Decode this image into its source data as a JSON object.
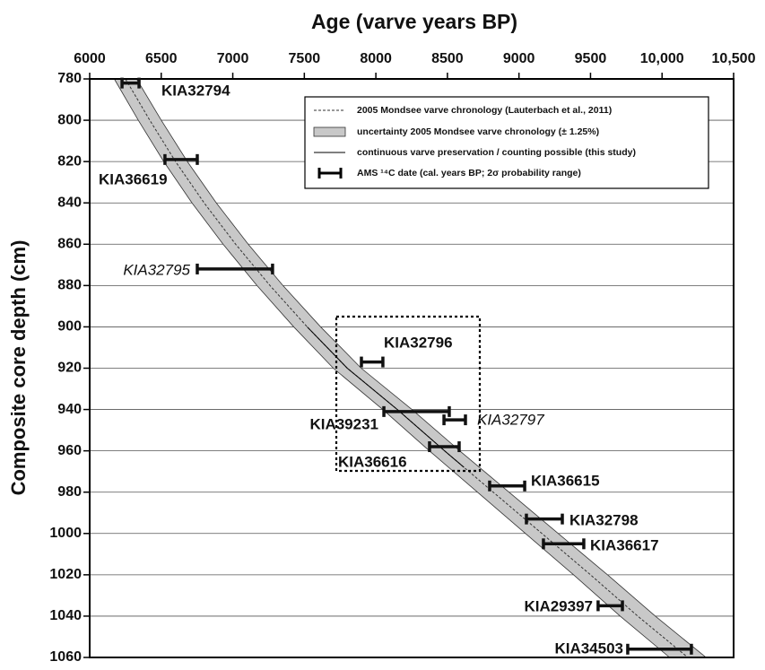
{
  "chart_data": {
    "type": "age-depth",
    "title": "Age (varve years BP)",
    "y_label": "Composite core depth (cm)",
    "xlim": [
      6000,
      10500
    ],
    "xticks": [
      6000,
      6500,
      7000,
      7500,
      8000,
      8500,
      9000,
      9500,
      {
        "value": 10000,
        "label": "10,000"
      },
      {
        "value": 10500,
        "label": "10,500"
      }
    ],
    "ylim": [
      780,
      1060
    ],
    "yticks": [
      780,
      800,
      820,
      840,
      860,
      880,
      900,
      920,
      940,
      960,
      980,
      1000,
      1020,
      1040,
      1060
    ],
    "grid": true,
    "chronology": {
      "name": "2005 Mondsee varve chronology (Lauterbach et al., 2011)",
      "color": "#333333",
      "depth": [
        780,
        800,
        820,
        840,
        860,
        880,
        900,
        920,
        940,
        960,
        980,
        1000,
        1020,
        1040,
        1060
      ],
      "age": [
        6250,
        6420,
        6600,
        6800,
        7020,
        7260,
        7520,
        7800,
        8150,
        8480,
        8820,
        9160,
        9500,
        9830,
        10180
      ]
    },
    "uncertainty": {
      "name": "uncertainty 2005 Mondsee varve chronology (± 1.25%)",
      "percent": 1.25,
      "color": "#c8c8c8"
    },
    "continuous": {
      "name": "continuous varve preservation / counting possible (this study)",
      "color": "#000000",
      "depth": [
        900,
        920,
        940,
        960,
        968
      ],
      "age": [
        7520,
        7800,
        8150,
        8480,
        8616
      ]
    },
    "dates_legend": "AMS ¹⁴C date (cal. years BP; 2σ probability range)",
    "dates": [
      {
        "label": "KIA32794",
        "depth": 782,
        "min": 6226,
        "max": 6345,
        "italic": false
      },
      {
        "label": "KIA36619",
        "depth": 819,
        "min": 6526,
        "max": 6752,
        "italic": false
      },
      {
        "label": "KIA32795",
        "depth": 872,
        "min": 6752,
        "max": 7278,
        "italic": true
      },
      {
        "label": "KIA32796",
        "depth": 917,
        "min": 7899,
        "max": 8049,
        "italic": false
      },
      {
        "label": "KIA39231",
        "depth": 941,
        "min": 8056,
        "max": 8513,
        "italic": false
      },
      {
        "label": "KIA32797",
        "depth": 945,
        "min": 8476,
        "max": 8626,
        "italic": true
      },
      {
        "label": "KIA36616",
        "depth": 958,
        "min": 8375,
        "max": 8582,
        "italic": false
      },
      {
        "label": "KIA36615",
        "depth": 977,
        "min": 8795,
        "max": 9040,
        "italic": false
      },
      {
        "label": "KIA32798",
        "depth": 993,
        "min": 9052,
        "max": 9303,
        "italic": false
      },
      {
        "label": "KIA36617",
        "depth": 1005,
        "min": 9171,
        "max": 9453,
        "italic": false
      },
      {
        "label": "KIA29397",
        "depth": 1035,
        "min": 9553,
        "max": 9723,
        "italic": false
      },
      {
        "label": "KIA34503",
        "depth": 1056,
        "min": 9760,
        "max": 10205,
        "italic": false
      }
    ]
  }
}
